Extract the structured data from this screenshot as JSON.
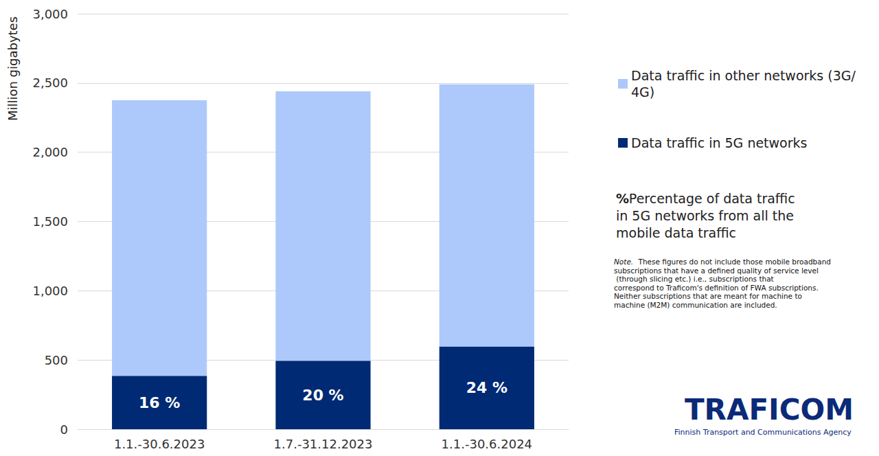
{
  "chart_data": {
    "type": "bar",
    "stacked": true,
    "y_label": "Million gigabytes",
    "categories": [
      "1.1.-30.6.2023",
      "1.7.-31.12.2023",
      "1.1.-30.6.2024"
    ],
    "series": [
      {
        "name": "Data traffic in 5G networks",
        "color": "#002a74",
        "values": [
          385,
          495,
          598
        ],
        "share_labels": [
          "16 %",
          "20 %",
          "24 %"
        ]
      },
      {
        "name": "Data traffic in other networks (3G/4G)",
        "color": "#adc9fb",
        "values": [
          1990,
          1945,
          1892
        ]
      }
    ],
    "ylim": [
      0,
      3000
    ],
    "yticks": [
      0,
      500,
      1000,
      1500,
      2000,
      2500,
      3000
    ],
    "grid": true,
    "legend": "right",
    "percent_note": {
      "symbol": "%",
      "text": "Percentage of data traffic in 5G networks from all the mobile data traffic"
    },
    "note_label": "Note.",
    "note": "These figures do not include those mobile broadband subscriptions that have a defined quality of service level (through slicing etc.) i.e., subscriptions that correspond to Traficom's definition of FWA subscriptions. Neither subscriptions that are meant for machine to machine (M2M) communication are included.",
    "logo": "TRAFICOM",
    "logo_subtitle": "Finnish Transport and Communications Agency"
  }
}
